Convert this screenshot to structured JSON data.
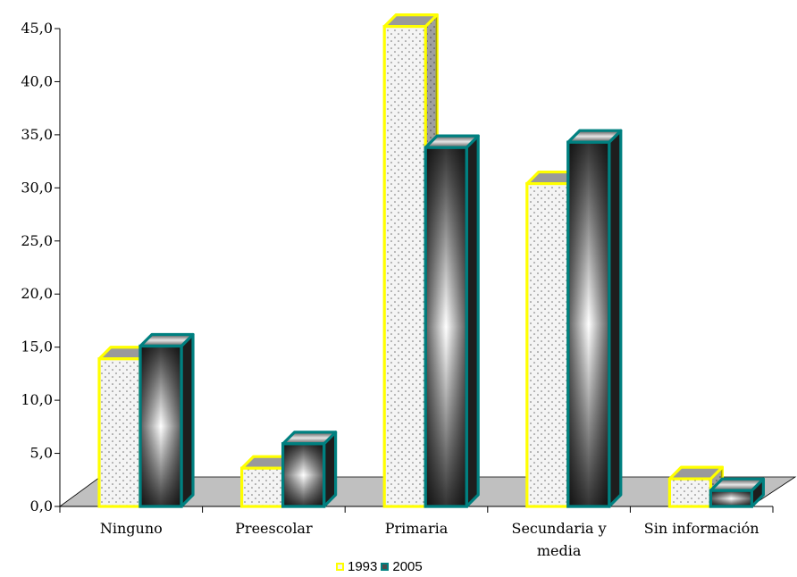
{
  "chart_data": {
    "type": "bar",
    "categories": [
      "Ninguno",
      "Preescolar",
      "Primaria",
      "Secundaria y media",
      "Sin información"
    ],
    "category_lines": [
      [
        "Ninguno"
      ],
      [
        "Preescolar"
      ],
      [
        "Primaria"
      ],
      [
        "Secundaria y",
        "media"
      ],
      [
        "Sin información"
      ]
    ],
    "series": [
      {
        "name": "1993",
        "values": [
          13.9,
          3.6,
          45.2,
          30.4,
          2.6
        ],
        "fill": "#f2f2f2",
        "border": "#ffff00"
      },
      {
        "name": "2005",
        "values": [
          15.1,
          5.9,
          33.8,
          34.3,
          1.5
        ],
        "fill": "#4d4d4d",
        "border": "#008080"
      }
    ],
    "ylim": [
      0,
      45
    ],
    "yticks": [
      "0,0",
      "5,0",
      "10,0",
      "15,0",
      "20,0",
      "25,0",
      "30,0",
      "35,0",
      "40,0",
      "45,0"
    ],
    "ytick_values": [
      0,
      5,
      10,
      15,
      20,
      25,
      30,
      35,
      40,
      45
    ],
    "xlabel": "",
    "ylabel": "",
    "title": "",
    "legend_position": "bottom",
    "floor_color": "#c0c0c0",
    "grid": false
  }
}
